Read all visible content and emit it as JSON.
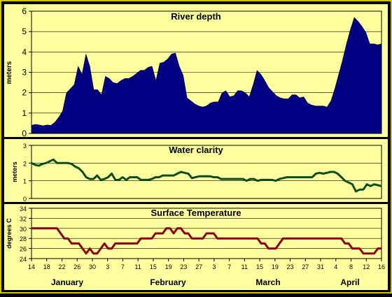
{
  "chart_data": [
    {
      "type": "area",
      "title": "River depth",
      "ylabel": "meters",
      "ylim": [
        0,
        6
      ],
      "yticks": [
        0,
        1,
        2,
        3,
        4,
        5,
        6
      ],
      "color": "#000080",
      "series": [
        {
          "values": [
            0.4,
            0.45,
            0.42,
            0.38,
            0.42,
            0.4,
            0.55,
            0.8,
            1.1,
            2.0,
            2.2,
            2.4,
            3.3,
            2.9,
            3.9,
            3.3,
            2.15,
            2.15,
            1.9,
            2.8,
            2.7,
            2.5,
            2.45,
            2.6,
            2.7,
            2.7,
            2.8,
            2.95,
            3.1,
            3.1,
            3.25,
            3.3,
            2.6,
            3.45,
            3.5,
            3.65,
            3.9,
            3.95,
            3.3,
            2.85,
            1.75,
            1.6,
            1.45,
            1.35,
            1.3,
            1.35,
            1.5,
            1.55,
            1.55,
            2.0,
            2.1,
            1.8,
            1.85,
            2.1,
            2.1,
            2.0,
            1.8,
            2.4,
            3.1,
            2.9,
            2.6,
            2.25,
            2.05,
            1.85,
            1.75,
            1.7,
            1.7,
            1.9,
            1.9,
            1.75,
            1.8,
            1.5,
            1.4,
            1.35,
            1.35,
            1.35,
            1.3,
            1.6,
            2.2,
            2.9,
            3.6,
            4.4,
            5.1,
            5.7,
            5.5,
            5.25,
            4.95,
            4.4,
            4.4,
            4.35,
            4.4
          ]
        }
      ]
    },
    {
      "type": "line",
      "title": "Water clarity",
      "ylabel": "meters",
      "ylim": [
        0,
        3
      ],
      "yticks": [
        0,
        1,
        2,
        3
      ],
      "color": "#0b4d18",
      "series": [
        {
          "values": [
            2.0,
            1.9,
            1.85,
            1.95,
            2.0,
            2.1,
            2.2,
            2.0,
            2.0,
            2.0,
            2.0,
            1.95,
            1.8,
            1.7,
            1.5,
            1.2,
            1.1,
            1.1,
            1.3,
            1.05,
            1.1,
            1.2,
            1.4,
            1.05,
            1.05,
            1.2,
            1.05,
            1.2,
            1.2,
            1.2,
            1.05,
            1.05,
            1.05,
            1.1,
            1.2,
            1.2,
            1.3,
            1.3,
            1.3,
            1.3,
            1.4,
            1.5,
            1.45,
            1.4,
            1.15,
            1.2,
            1.25,
            1.25,
            1.25,
            1.25,
            1.2,
            1.2,
            1.1,
            1.1,
            1.1,
            1.1,
            1.1,
            1.1,
            1.1,
            1.0,
            1.1,
            1.1,
            1.0,
            1.05,
            1.05,
            1.05,
            1.05,
            1.0,
            1.1,
            1.15,
            1.2,
            1.2,
            1.2,
            1.2,
            1.2,
            1.2,
            1.2,
            1.2,
            1.4,
            1.45,
            1.4,
            1.45,
            1.5,
            1.5,
            1.4,
            1.2,
            1.0,
            0.9,
            0.8,
            0.4,
            0.5,
            0.5,
            0.8,
            0.7,
            0.8,
            0.75,
            0.7
          ]
        }
      ]
    },
    {
      "type": "line",
      "title": "Surface Temperature",
      "ylabel": "degrees C",
      "ylim": [
        24,
        34
      ],
      "yticks": [
        24,
        26,
        28,
        30,
        32,
        34
      ],
      "color": "#8b0000",
      "series": [
        {
          "values": [
            30,
            30,
            30,
            30,
            30,
            30,
            30,
            30,
            29,
            28,
            28,
            27,
            27,
            27,
            26,
            25,
            26,
            25,
            25,
            26,
            27,
            26,
            26,
            27,
            27,
            27,
            27,
            27,
            27,
            27,
            28,
            28,
            28,
            28,
            29,
            29,
            29,
            30,
            30,
            29,
            30,
            30,
            29,
            29,
            28,
            28,
            28,
            28,
            29,
            29,
            29,
            28,
            28,
            28,
            28,
            28,
            28,
            28,
            28,
            28,
            28,
            28,
            28,
            27,
            27,
            26,
            26,
            26,
            27,
            28,
            28,
            28,
            28,
            28,
            28,
            28,
            28,
            28,
            28,
            28,
            28,
            28,
            28,
            28,
            28,
            28,
            27,
            27,
            26,
            26,
            26,
            25,
            25,
            25,
            25,
            26,
            26
          ]
        }
      ]
    }
  ],
  "x_axis": {
    "tick_labels": [
      "14",
      "18",
      "22",
      "26",
      "30",
      "3",
      "7",
      "11",
      "15",
      "19",
      "23",
      "27",
      "3",
      "7",
      "11",
      "15",
      "19",
      "23",
      "27",
      "31",
      "4",
      "8",
      "12",
      "16"
    ],
    "months": [
      "January",
      "February",
      "March",
      "April"
    ]
  }
}
